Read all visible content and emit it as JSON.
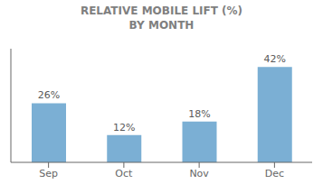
{
  "chart_data": {
    "type": "bar",
    "title": "RELATIVE MOBILE LIFT (%)",
    "subtitle": "BY MONTH",
    "categories": [
      "Sep",
      "Oct",
      "Nov",
      "Dec"
    ],
    "values": [
      26,
      12,
      18,
      42
    ],
    "value_labels": [
      "26%",
      "12%",
      "18%",
      "42%"
    ],
    "data_labels": true,
    "color": "#7bafd4",
    "ylim": [
      0,
      50
    ],
    "grid": false,
    "tick_labels": "x"
  }
}
